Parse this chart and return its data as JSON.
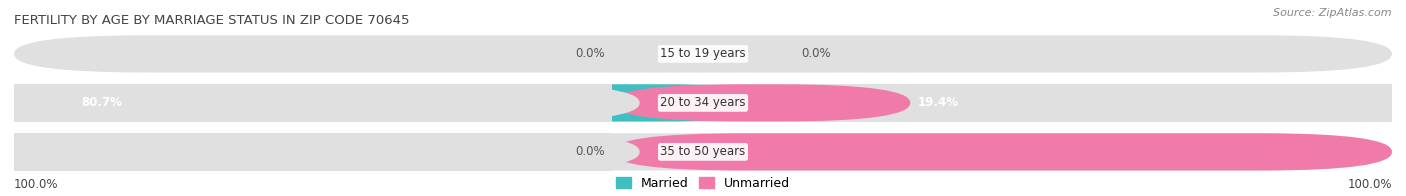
{
  "title": "FERTILITY BY AGE BY MARRIAGE STATUS IN ZIP CODE 70645",
  "source": "Source: ZipAtlas.com",
  "categories": [
    "15 to 19 years",
    "20 to 34 years",
    "35 to 50 years"
  ],
  "married_vals": [
    0.0,
    80.7,
    0.0
  ],
  "unmarried_vals": [
    0.0,
    19.4,
    100.0
  ],
  "married_color": "#3FBFBF",
  "unmarried_color": "#F07BAA",
  "bar_bg_color": "#E0E0E0",
  "bar_bg_color2": "#EAEAEA",
  "title_fontsize": 9.5,
  "source_fontsize": 8,
  "label_fontsize": 8.5,
  "cat_fontsize": 8.5,
  "legend_fontsize": 9,
  "background_color": "#FFFFFF",
  "bottom_left_label": "100.0%",
  "bottom_right_label": "100.0%"
}
